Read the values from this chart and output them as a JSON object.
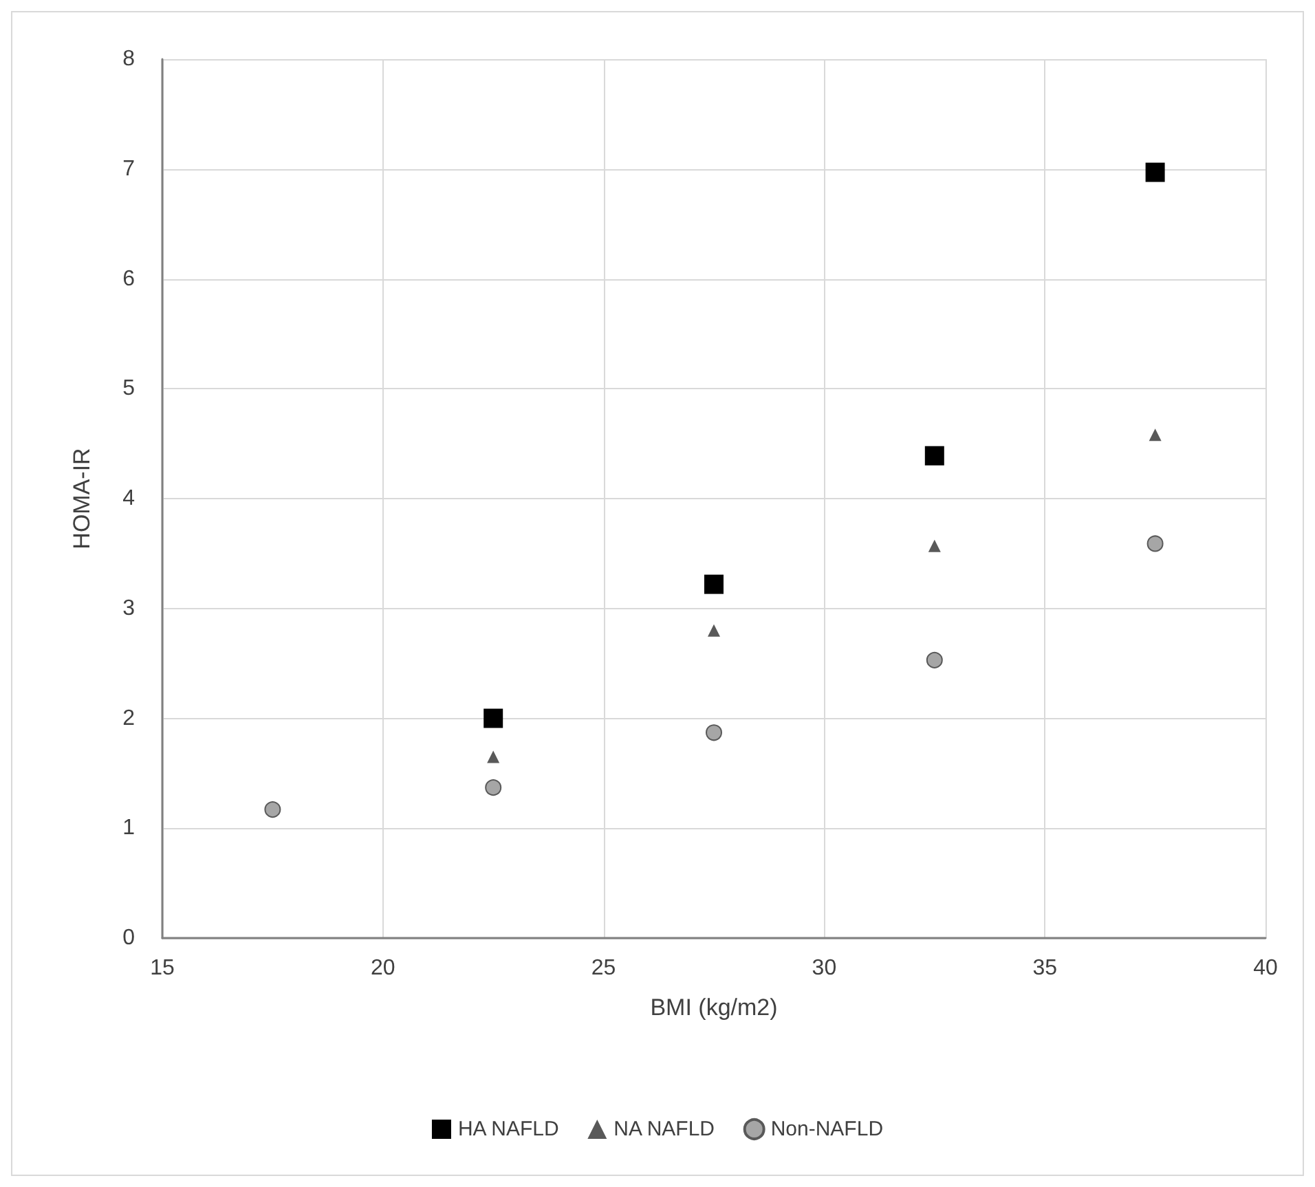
{
  "chart_data": {
    "type": "scatter",
    "xlabel": "BMI (kg/m2)",
    "ylabel": "HOMA-IR",
    "series": [
      {
        "name": "HA NAFLD",
        "color": "#000000",
        "marker": "square",
        "x": [
          22.5,
          27.5,
          32.5,
          37.5
        ],
        "values": [
          2.0,
          3.22,
          4.39,
          6.97
        ]
      },
      {
        "name": "NA NAFLD",
        "color": "#595959",
        "marker": "triangle",
        "x": [
          22.5,
          27.5,
          32.5,
          37.5
        ],
        "values": [
          1.65,
          2.8,
          3.57,
          4.58
        ]
      },
      {
        "name": "Non-NAFLD",
        "color": "#a6a6a6",
        "marker": "circle",
        "x": [
          17.5,
          22.5,
          27.5,
          32.5,
          37.5
        ],
        "values": [
          1.17,
          1.37,
          1.87,
          2.53,
          3.59
        ]
      }
    ],
    "xlim": [
      15,
      40
    ],
    "xticks": [
      15,
      20,
      25,
      30,
      35,
      40
    ],
    "ylim": [
      0,
      8
    ],
    "yticks": [
      0,
      1,
      2,
      3,
      4,
      5,
      6,
      7,
      8
    ],
    "grid": true,
    "legend": "bottom"
  }
}
